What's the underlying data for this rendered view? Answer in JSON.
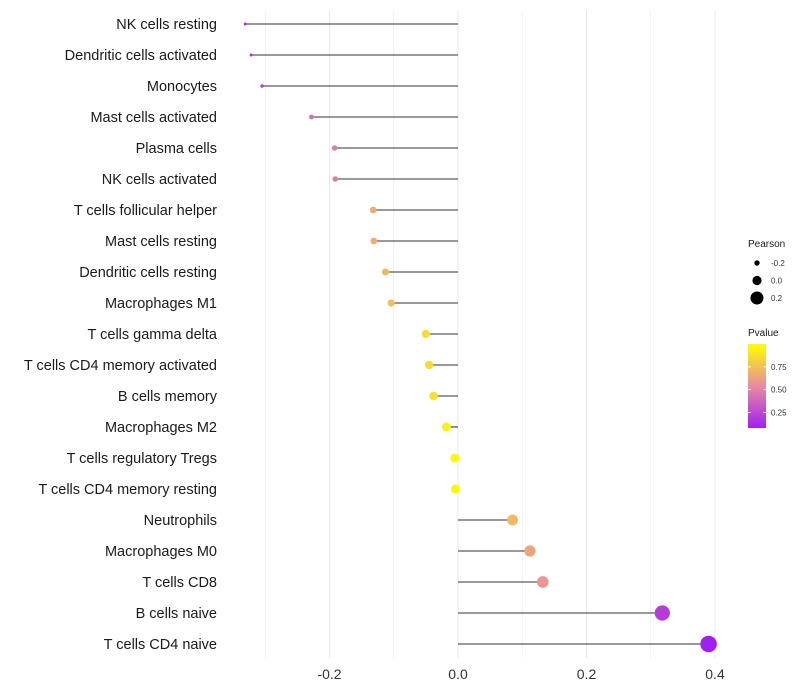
{
  "chart_data": {
    "type": "lollipop",
    "title": "",
    "xlabel": "",
    "ylabel": "",
    "xlim": [
      -0.36,
      0.41
    ],
    "x_ticks": [
      -0.2,
      0.0,
      0.2,
      0.4
    ],
    "x_tick_labels": [
      "-0.2",
      "0.0",
      "0.2",
      "0.4"
    ],
    "grid": true,
    "baseline": 0,
    "categories": [
      "NK cells resting",
      "Dendritic cells activated",
      "Monocytes",
      "Mast cells activated",
      "Plasma cells",
      "NK cells activated",
      "T cells follicular helper",
      "Mast cells resting",
      "Dendritic cells resting",
      "Macrophages M1",
      "T cells gamma delta",
      "T cells CD4 memory activated",
      "B cells memory",
      "Macrophages M2",
      "T cells regulatory  Tregs ",
      "T cells CD4 memory resting",
      "Neutrophils",
      "Macrophages M0",
      "T cells CD8",
      "B cells naive",
      "T cells CD4 naive"
    ],
    "pearson": [
      -0.331,
      -0.322,
      -0.305,
      -0.228,
      -0.192,
      -0.191,
      -0.132,
      -0.131,
      -0.113,
      -0.104,
      -0.05,
      -0.045,
      -0.038,
      -0.018,
      -0.005,
      -0.004,
      0.085,
      0.112,
      0.132,
      0.318,
      0.39
    ],
    "pvalue": [
      0.15,
      0.16,
      0.19,
      0.42,
      0.47,
      0.47,
      0.67,
      0.67,
      0.72,
      0.74,
      0.85,
      0.86,
      0.88,
      0.94,
      0.98,
      0.98,
      0.72,
      0.64,
      0.58,
      0.2,
      0.08
    ],
    "legend": {
      "position": "right",
      "size": {
        "title": "Pearson",
        "values": [
          -0.2,
          0.0,
          0.2
        ],
        "labels": [
          "-0.2",
          "0.0",
          "0.2"
        ]
      },
      "color": {
        "title": "Pvalue",
        "range": [
          0.08,
          1.0
        ],
        "ticks": [
          0.25,
          0.5,
          0.75
        ],
        "tick_labels": [
          "0.25",
          "0.50",
          "0.75"
        ],
        "low_color": "#a020f0",
        "mid_color": "#e88ca0",
        "high_color": "#ffff00"
      }
    },
    "colors": {
      "segment": "#333333",
      "grid": "#ebebeb"
    }
  }
}
